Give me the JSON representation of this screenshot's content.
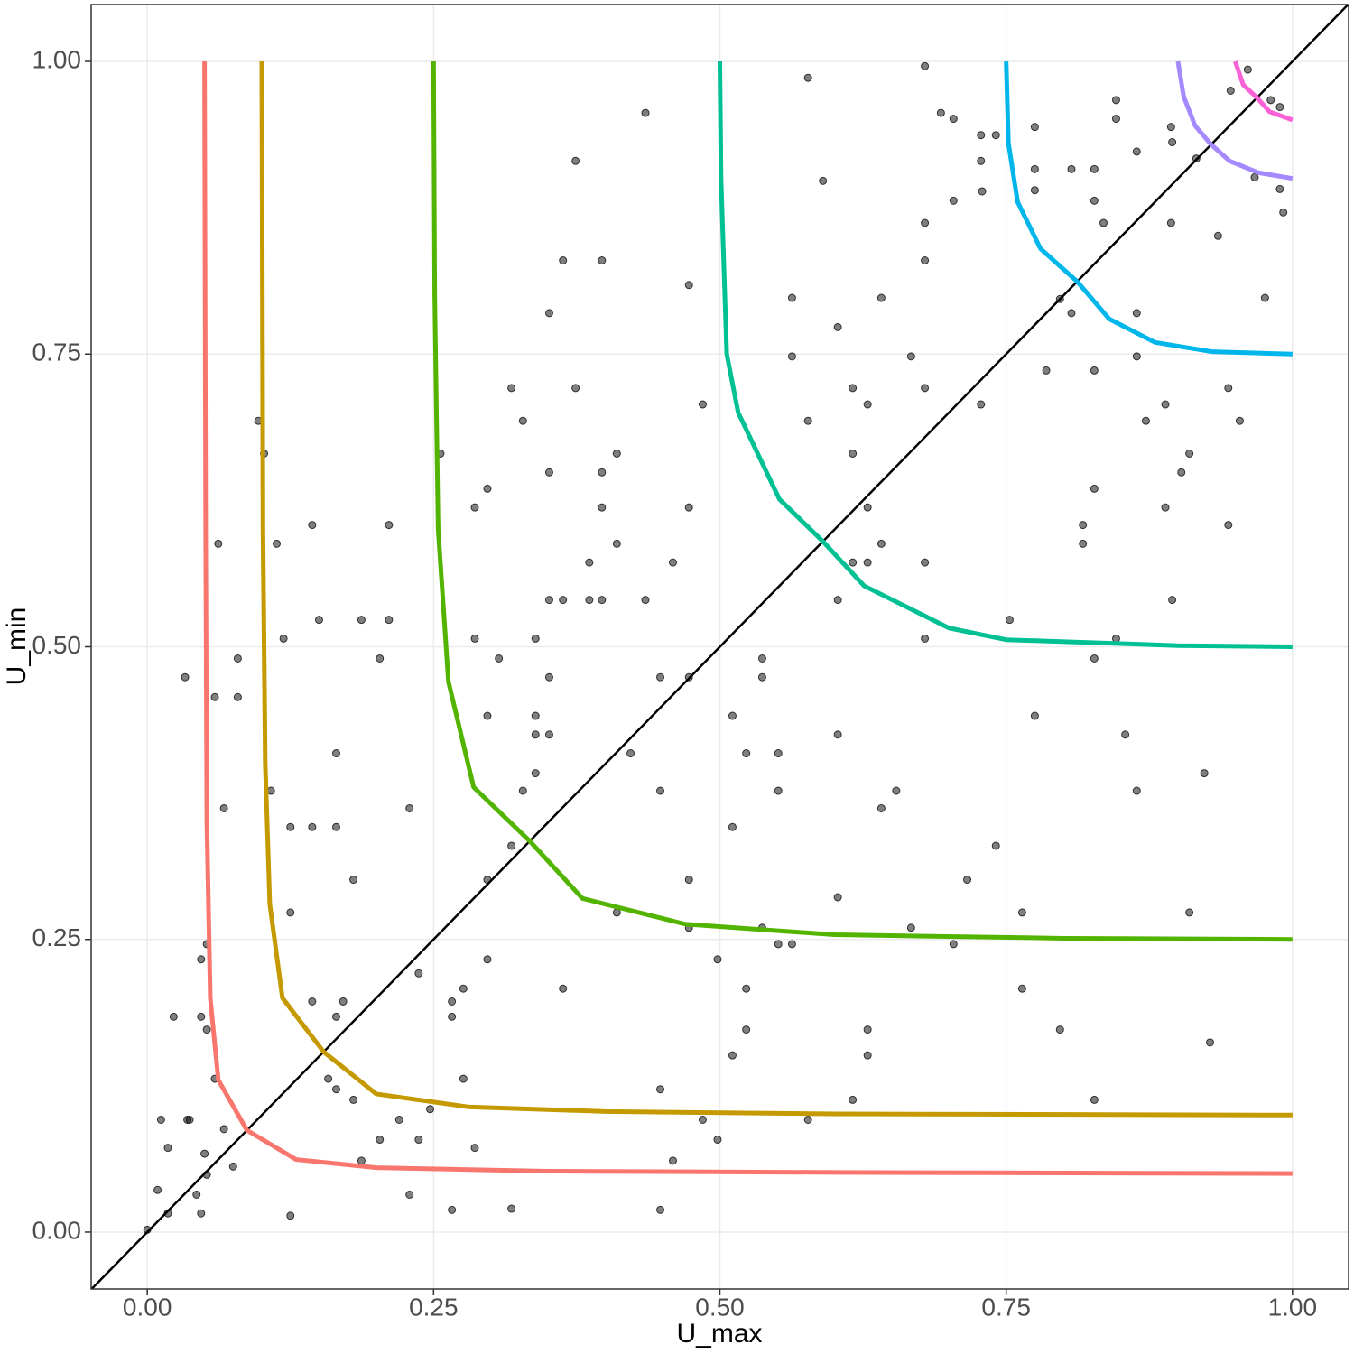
{
  "chart_data": {
    "type": "scatter",
    "x_label": "U_max",
    "y_label": "U_min",
    "xlim": [
      -0.049,
      1.049
    ],
    "ylim": [
      -0.0486,
      1.0486
    ],
    "xticks": [
      {
        "value": 0,
        "label": "0.00"
      },
      {
        "value": 0.25,
        "label": "0.25"
      },
      {
        "value": 0.5,
        "label": "0.50"
      },
      {
        "value": 0.75,
        "label": "0.75"
      },
      {
        "value": 1,
        "label": "1.00"
      }
    ],
    "yticks": [
      {
        "value": 0,
        "label": "0.00"
      },
      {
        "value": 0.25,
        "label": "0.25"
      },
      {
        "value": 0.5,
        "label": "0.50"
      },
      {
        "value": 0.75,
        "label": "0.75"
      },
      {
        "value": 1,
        "label": "1.00"
      }
    ],
    "grid": true,
    "reference_line": {
      "slope": 1,
      "intercept": 0,
      "color": "#000000"
    },
    "points": {
      "color": "#000000",
      "x": [
        0.679,
        0.577,
        0.435,
        0.693,
        0.704,
        0.775,
        0.728,
        0.741,
        0.894,
        0.895,
        0.846,
        0.846,
        0.864,
        0.961,
        0.946,
        0.981,
        0.989,
        0.916,
        0.374,
        0.728,
        0.775,
        0.807,
        0.827,
        0.967,
        0.989,
        0.59,
        0.729,
        0.775,
        0.704,
        0.827,
        0.992,
        0.835,
        0.894,
        0.679,
        0.935,
        0.363,
        0.397,
        0.679,
        0.473,
        0.563,
        0.641,
        0.976,
        0.797,
        0.351,
        0.807,
        0.864,
        0.603,
        0.563,
        0.667,
        0.864,
        0.785,
        0.827,
        0.318,
        0.374,
        0.616,
        0.679,
        0.944,
        0.485,
        0.629,
        0.728,
        0.889,
        0.328,
        0.097,
        0.577,
        0.872,
        0.954,
        0.102,
        0.256,
        0.41,
        0.616,
        0.91,
        0.351,
        0.397,
        0.903,
        0.297,
        0.827,
        0.286,
        0.397,
        0.473,
        0.629,
        0.889,
        0.144,
        0.211,
        0.817,
        0.944,
        0.062,
        0.113,
        0.41,
        0.641,
        0.817,
        0.386,
        0.459,
        0.616,
        0.629,
        0.679,
        0.351,
        0.363,
        0.386,
        0.397,
        0.435,
        0.603,
        0.895,
        0.15,
        0.187,
        0.211,
        0.753,
        0.119,
        0.286,
        0.339,
        0.679,
        0.846,
        0.203,
        0.079,
        0.307,
        0.537,
        0.827,
        0.033,
        0.351,
        0.448,
        0.473,
        0.537,
        0.059,
        0.079,
        0.297,
        0.339,
        0.511,
        0.775,
        0.339,
        0.351,
        0.603,
        0.854,
        0.165,
        0.422,
        0.523,
        0.551,
        0.339,
        0.923,
        0.108,
        0.328,
        0.448,
        0.551,
        0.654,
        0.864,
        0.067,
        0.229,
        0.641,
        0.125,
        0.144,
        0.165,
        0.511,
        0.318,
        0.741,
        0.18,
        0.297,
        0.473,
        0.716,
        0.603,
        0.125,
        0.41,
        0.764,
        0.91,
        0.473,
        0.537,
        0.667,
        0.551,
        0.563,
        0.704,
        0.052,
        0.047,
        0.297,
        0.498,
        0.237,
        0.363,
        0.276,
        0.523,
        0.764,
        0.144,
        0.171,
        0.266,
        0.023,
        0.047,
        0.165,
        0.266,
        0.052,
        0.523,
        0.629,
        0.797,
        0.928,
        0.511,
        0.629,
        0.059,
        0.158,
        0.276,
        0.165,
        0.448,
        0.18,
        0.616,
        0.827,
        0.247,
        0.012,
        0.035,
        0.037,
        0.22,
        0.485,
        0.577,
        0.067,
        0.203,
        0.237,
        0.498,
        0.018,
        0.286,
        0.05,
        0.187,
        0.459,
        0.075,
        0.052,
        0.009,
        0.043,
        0.229,
        0.018,
        0.047,
        0.125,
        0.266,
        0.318,
        0.448,
        0.0
      ],
      "y": [
        0.996,
        0.986,
        0.956,
        0.956,
        0.951,
        0.944,
        0.937,
        0.937,
        0.944,
        0.931,
        0.951,
        0.967,
        0.923,
        0.993,
        0.975,
        0.967,
        0.961,
        0.917,
        0.915,
        0.915,
        0.908,
        0.908,
        0.908,
        0.901,
        0.891,
        0.898,
        0.889,
        0.89,
        0.881,
        0.881,
        0.871,
        0.862,
        0.862,
        0.862,
        0.851,
        0.83,
        0.83,
        0.83,
        0.809,
        0.798,
        0.798,
        0.798,
        0.797,
        0.785,
        0.785,
        0.785,
        0.773,
        0.748,
        0.748,
        0.748,
        0.736,
        0.736,
        0.721,
        0.721,
        0.721,
        0.721,
        0.721,
        0.707,
        0.707,
        0.707,
        0.707,
        0.693,
        0.693,
        0.693,
        0.693,
        0.693,
        0.665,
        0.665,
        0.665,
        0.665,
        0.665,
        0.649,
        0.649,
        0.649,
        0.635,
        0.635,
        0.619,
        0.619,
        0.619,
        0.619,
        0.619,
        0.604,
        0.604,
        0.604,
        0.604,
        0.588,
        0.588,
        0.588,
        0.588,
        0.588,
        0.572,
        0.572,
        0.572,
        0.572,
        0.572,
        0.54,
        0.54,
        0.54,
        0.54,
        0.54,
        0.54,
        0.54,
        0.523,
        0.523,
        0.523,
        0.523,
        0.507,
        0.507,
        0.507,
        0.507,
        0.507,
        0.49,
        0.49,
        0.49,
        0.49,
        0.49,
        0.474,
        0.474,
        0.474,
        0.474,
        0.474,
        0.457,
        0.457,
        0.441,
        0.441,
        0.441,
        0.441,
        0.425,
        0.425,
        0.425,
        0.425,
        0.409,
        0.409,
        0.409,
        0.409,
        0.392,
        0.392,
        0.377,
        0.377,
        0.377,
        0.377,
        0.377,
        0.377,
        0.362,
        0.362,
        0.362,
        0.346,
        0.346,
        0.346,
        0.346,
        0.33,
        0.33,
        0.301,
        0.301,
        0.301,
        0.301,
        0.286,
        0.273,
        0.273,
        0.273,
        0.273,
        0.26,
        0.26,
        0.26,
        0.246,
        0.246,
        0.246,
        0.246,
        0.233,
        0.233,
        0.233,
        0.221,
        0.208,
        0.208,
        0.208,
        0.208,
        0.197,
        0.197,
        0.197,
        0.184,
        0.184,
        0.184,
        0.184,
        0.173,
        0.173,
        0.173,
        0.173,
        0.162,
        0.151,
        0.151,
        0.131,
        0.131,
        0.131,
        0.122,
        0.122,
        0.113,
        0.113,
        0.113,
        0.105,
        0.096,
        0.096,
        0.096,
        0.096,
        0.096,
        0.096,
        0.088,
        0.079,
        0.079,
        0.079,
        0.072,
        0.072,
        0.067,
        0.061,
        0.061,
        0.056,
        0.049,
        0.036,
        0.032,
        0.032,
        0.016,
        0.016,
        0.014,
        0.019,
        0.02,
        0.019,
        0.002
      ]
    },
    "curves": [
      {
        "color": "#F8766D",
        "x": [
          0.05,
          0.051,
          0.052,
          0.055,
          0.062,
          0.087,
          0.13,
          0.2,
          0.35,
          0.6,
          1.0
        ],
        "y": [
          1.0,
          0.6,
          0.35,
          0.2,
          0.13,
          0.087,
          0.062,
          0.055,
          0.052,
          0.051,
          0.05
        ]
      },
      {
        "color": "#C49A00",
        "x": [
          0.1,
          0.101,
          0.103,
          0.107,
          0.118,
          0.154,
          0.2,
          0.28,
          0.4,
          0.6,
          1.0
        ],
        "y": [
          1.0,
          0.6,
          0.4,
          0.28,
          0.2,
          0.154,
          0.118,
          0.107,
          0.103,
          0.101,
          0.1
        ]
      },
      {
        "color": "#53B400",
        "x": [
          0.25,
          0.251,
          0.254,
          0.263,
          0.285,
          0.334,
          0.38,
          0.47,
          0.6,
          0.8,
          1.0
        ],
        "y": [
          1.0,
          0.8,
          0.6,
          0.47,
          0.38,
          0.334,
          0.285,
          0.263,
          0.254,
          0.251,
          0.25
        ]
      },
      {
        "color": "#00C094",
        "x": [
          0.5,
          0.501,
          0.506,
          0.516,
          0.552,
          0.59,
          0.626,
          0.7,
          0.75,
          0.9,
          1.0
        ],
        "y": [
          1.0,
          0.9,
          0.75,
          0.7,
          0.626,
          0.59,
          0.552,
          0.516,
          0.506,
          0.501,
          0.5
        ]
      },
      {
        "color": "#00B6EB",
        "x": [
          0.75,
          0.752,
          0.76,
          0.78,
          0.812,
          0.84,
          0.88,
          0.93,
          1.0
        ],
        "y": [
          1.0,
          0.93,
          0.88,
          0.84,
          0.812,
          0.78,
          0.76,
          0.752,
          0.75
        ]
      },
      {
        "color": "#A58AFF",
        "x": [
          0.9,
          0.905,
          0.915,
          0.929,
          0.945,
          0.97,
          1.0
        ],
        "y": [
          1.0,
          0.97,
          0.945,
          0.929,
          0.915,
          0.905,
          0.9
        ]
      },
      {
        "color": "#FB61D7",
        "x": [
          0.95,
          0.957,
          0.969,
          0.98,
          1.0
        ],
        "y": [
          1.0,
          0.98,
          0.969,
          0.957,
          0.95
        ]
      }
    ]
  }
}
